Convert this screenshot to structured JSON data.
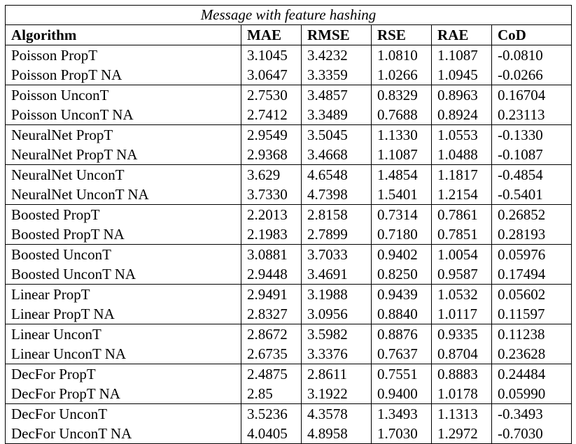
{
  "caption": "Message with feature hashing",
  "columns": [
    "Algorithm",
    "MAE",
    "RMSE",
    "RSE",
    "RAE",
    "CoD"
  ],
  "groups": [
    {
      "rows": [
        {
          "algorithm": "Poisson PropT",
          "mae": "3.1045",
          "rmse": "3.4232",
          "rse": "1.0810",
          "rae": "1.1087",
          "cod": "-0.0810"
        },
        {
          "algorithm": "Poisson PropT NA",
          "mae": "3.0647",
          "rmse": "3.3359",
          "rse": "1.0266",
          "rae": "1.0945",
          "cod": "-0.0266"
        }
      ]
    },
    {
      "rows": [
        {
          "algorithm": "Poisson UnconT",
          "mae": "2.7530",
          "rmse": "3.4857",
          "rse": "0.8329",
          "rae": "0.8963",
          "cod": "0.16704"
        },
        {
          "algorithm": "Poisson UnconT NA",
          "mae": "2.7412",
          "rmse": "3.3489",
          "rse": "0.7688",
          "rae": "0.8924",
          "cod": "0.23113"
        }
      ]
    },
    {
      "rows": [
        {
          "algorithm": "NeuralNet PropT",
          "mae": "2.9549",
          "rmse": "3.5045",
          "rse": "1.1330",
          "rae": "1.0553",
          "cod": "-0.1330"
        },
        {
          "algorithm": "NeuralNet PropT NA",
          "mae": "2.9368",
          "rmse": "3.4668",
          "rse": "1.1087",
          "rae": "1.0488",
          "cod": "-0.1087"
        }
      ]
    },
    {
      "rows": [
        {
          "algorithm": "NeuralNet UnconT",
          "mae": "3.629",
          "rmse": "4.6548",
          "rse": "1.4854",
          "rae": "1.1817",
          "cod": "-0.4854"
        },
        {
          "algorithm": "NeuralNet UnconT NA",
          "mae": "3.7330",
          "rmse": "4.7398",
          "rse": "1.5401",
          "rae": "1.2154",
          "cod": "-0.5401"
        }
      ]
    },
    {
      "rows": [
        {
          "algorithm": "Boosted PropT",
          "mae": "2.2013",
          "rmse": "2.8158",
          "rse": "0.7314",
          "rae": "0.7861",
          "cod": "0.26852"
        },
        {
          "algorithm": "Boosted PropT NA",
          "mae": "2.1983",
          "rmse": "2.7899",
          "rse": "0.7180",
          "rae": "0.7851",
          "cod": "0.28193"
        }
      ]
    },
    {
      "rows": [
        {
          "algorithm": "Boosted UnconT",
          "mae": "3.0881",
          "rmse": "3.7033",
          "rse": "0.9402",
          "rae": "1.0054",
          "cod": "0.05976"
        },
        {
          "algorithm": "Boosted UnconT NA",
          "mae": "2.9448",
          "rmse": "3.4691",
          "rse": "0.8250",
          "rae": "0.9587",
          "cod": "0.17494"
        }
      ]
    },
    {
      "rows": [
        {
          "algorithm": "Linear PropT",
          "mae": "2.9491",
          "rmse": "3.1988",
          "rse": "0.9439",
          "rae": "1.0532",
          "cod": "0.05602"
        },
        {
          "algorithm": "Linear PropT NA",
          "mae": "2.8327",
          "rmse": "3.0956",
          "rse": "0.8840",
          "rae": "1.0117",
          "cod": "0.11597"
        }
      ]
    },
    {
      "rows": [
        {
          "algorithm": "Linear UnconT",
          "mae": "2.8672",
          "rmse": "3.5982",
          "rse": "0.8876",
          "rae": "0.9335",
          "cod": "0.11238"
        },
        {
          "algorithm": "Linear UnconT NA",
          "mae": "2.6735",
          "rmse": "3.3376",
          "rse": "0.7637",
          "rae": "0.8704",
          "cod": "0.23628"
        }
      ]
    },
    {
      "rows": [
        {
          "algorithm": "DecFor PropT",
          "mae": "2.4875",
          "rmse": "2.8611",
          "rse": "0.7551",
          "rae": "0.8883",
          "cod": "0.24484",
          "bold_algorithm": true,
          "bold_cod": true
        },
        {
          "algorithm": "DecFor PropT NA",
          "mae": "2.85",
          "rmse": "3.1922",
          "rse": "0.9400",
          "rae": "1.0178",
          "cod": "0.05990",
          "bold_cod": true
        }
      ]
    },
    {
      "rows": [
        {
          "algorithm": "DecFor UnconT",
          "mae": "3.5236",
          "rmse": "4.3578",
          "rse": "1.3493",
          "rae": "1.1313",
          "cod": "-0.3493"
        },
        {
          "algorithm": "DecFor UnconT NA",
          "mae": "4.0405",
          "rmse": "4.8958",
          "rse": "1.7030",
          "rae": "1.2972",
          "cod": "-0.7030"
        }
      ]
    }
  ]
}
